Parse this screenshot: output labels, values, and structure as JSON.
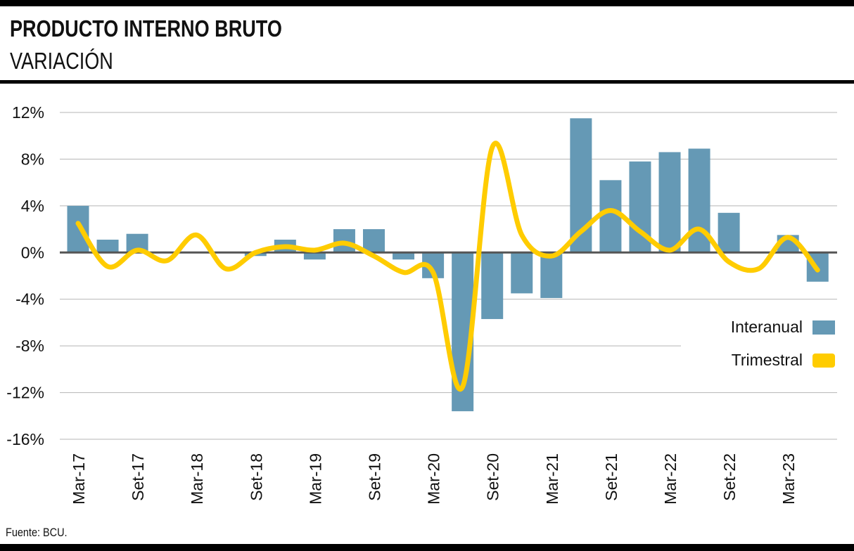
{
  "header": {
    "title": "PRODUCTO INTERNO BRUTO",
    "subtitle": "VARIACIÓN"
  },
  "footer": {
    "source": "Fuente: BCU."
  },
  "colors": {
    "interanual": "#6599b5",
    "trimestral": "#ffcc00",
    "gridline": "#b5b5b5",
    "zeroline": "#555555"
  },
  "chart_data": {
    "type": "bar",
    "y_tick_labels": [
      "12%",
      "8%",
      "4%",
      "0%",
      "-4%",
      "-8%",
      "-12%",
      "-16%"
    ],
    "y_tick_values": [
      12,
      8,
      4,
      0,
      -4,
      -8,
      -12,
      -16
    ],
    "ylim": [
      -16,
      12
    ],
    "x_tick_labels": [
      "Mar-17",
      "Set-17",
      "Mar-18",
      "Set-18",
      "Mar-19",
      "Set-19",
      "Mar-20",
      "Set-20",
      "Mar-21",
      "Set-21",
      "Mar-22",
      "Set-22",
      "Mar-23"
    ],
    "categories": [
      "Mar-17",
      "Jun-17",
      "Set-17",
      "Dic-17",
      "Mar-18",
      "Jun-18",
      "Set-18",
      "Dic-18",
      "Mar-19",
      "Jun-19",
      "Set-19",
      "Dic-19",
      "Mar-20",
      "Jun-20",
      "Set-20",
      "Dic-20",
      "Mar-21",
      "Jun-21",
      "Set-21",
      "Dic-21",
      "Mar-22",
      "Jun-22",
      "Set-22",
      "Dic-22",
      "Mar-23",
      "Jun-23"
    ],
    "series": [
      {
        "name": "Interanual",
        "type": "bar",
        "values": [
          4.0,
          1.1,
          1.6,
          0.0,
          0.0,
          0.0,
          -0.3,
          1.1,
          -0.6,
          2.0,
          2.0,
          -0.6,
          -2.2,
          -13.6,
          -5.7,
          -3.5,
          -3.9,
          11.5,
          6.2,
          7.8,
          8.6,
          8.9,
          3.4,
          0.0,
          1.5,
          -2.5
        ]
      },
      {
        "name": "Trimestral",
        "type": "line",
        "values": [
          2.5,
          -1.2,
          0.2,
          -0.7,
          1.5,
          -1.4,
          0.0,
          0.5,
          0.2,
          0.8,
          -0.3,
          -1.7,
          -1.7,
          -11.5,
          9.0,
          1.5,
          -0.3,
          1.8,
          3.6,
          1.8,
          0.2,
          2.0,
          -0.8,
          -1.4,
          1.3,
          -1.5
        ]
      }
    ],
    "legend": [
      "Interanual",
      "Trimestral"
    ],
    "legend_position": "right",
    "grid": true
  }
}
